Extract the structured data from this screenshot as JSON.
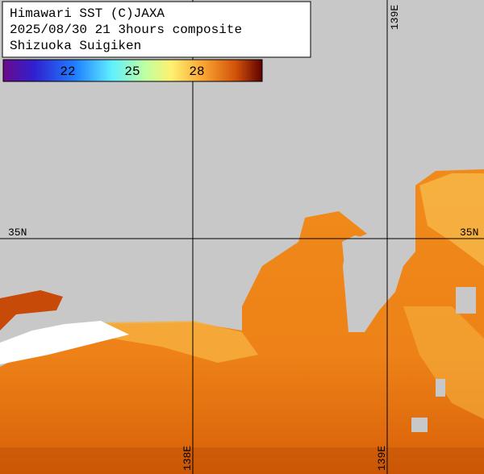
{
  "header": {
    "lines": [
      "Himawari SST (C)JAXA",
      "2025/08/30 21 3hours composite",
      "Shizuoka Suigiken"
    ]
  },
  "colorbar": {
    "ticks": [
      22,
      25,
      28
    ]
  },
  "grid_labels": {
    "lat_left": "35N",
    "lat_right": "35N",
    "lon_top": "139E",
    "lon_bottom_1": "138E",
    "lon_bottom_2": "139E"
  }
}
